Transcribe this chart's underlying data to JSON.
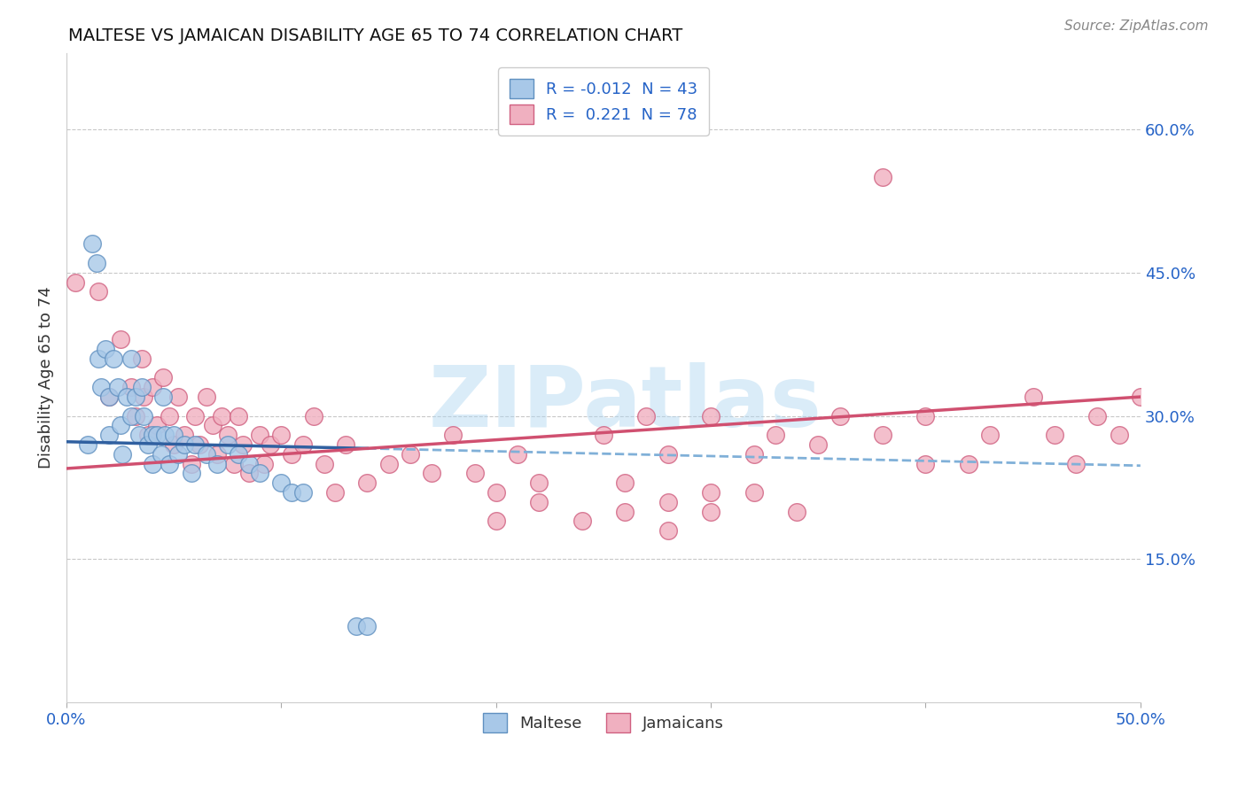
{
  "title": "MALTESE VS JAMAICAN DISABILITY AGE 65 TO 74 CORRELATION CHART",
  "source": "Source: ZipAtlas.com",
  "ylabel": "Disability Age 65 to 74",
  "xlim": [
    0.0,
    0.5
  ],
  "ylim": [
    0.0,
    0.68
  ],
  "ytick_labels_right": [
    "15.0%",
    "30.0%",
    "45.0%",
    "60.0%"
  ],
  "ytick_vals_right": [
    0.15,
    0.3,
    0.45,
    0.6
  ],
  "grid_color": "#c8c8c8",
  "background_color": "#ffffff",
  "watermark": "ZIPatlas",
  "watermark_color": "#aed6f1",
  "legend_blue_label": "R = -0.012  N = 43",
  "legend_pink_label": "R =  0.221  N = 78",
  "legend_label_maltese": "Maltese",
  "legend_label_jamaicans": "Jamaicans",
  "blue_color": "#a8c8e8",
  "pink_color": "#f0b0c0",
  "blue_edge": "#6090c0",
  "pink_edge": "#d06080",
  "trend_blue_solid_color": "#3060a0",
  "trend_blue_dash_color": "#80b0d8",
  "trend_pink_color": "#d05070",
  "blue_x": [
    0.01,
    0.012,
    0.014,
    0.015,
    0.016,
    0.018,
    0.02,
    0.02,
    0.022,
    0.024,
    0.025,
    0.026,
    0.028,
    0.03,
    0.03,
    0.032,
    0.034,
    0.035,
    0.036,
    0.038,
    0.04,
    0.04,
    0.042,
    0.044,
    0.045,
    0.046,
    0.048,
    0.05,
    0.052,
    0.055,
    0.058,
    0.06,
    0.065,
    0.07,
    0.075,
    0.08,
    0.085,
    0.09,
    0.1,
    0.105,
    0.11,
    0.135,
    0.14
  ],
  "blue_y": [
    0.27,
    0.48,
    0.46,
    0.36,
    0.33,
    0.37,
    0.32,
    0.28,
    0.36,
    0.33,
    0.29,
    0.26,
    0.32,
    0.36,
    0.3,
    0.32,
    0.28,
    0.33,
    0.3,
    0.27,
    0.28,
    0.25,
    0.28,
    0.26,
    0.32,
    0.28,
    0.25,
    0.28,
    0.26,
    0.27,
    0.24,
    0.27,
    0.26,
    0.25,
    0.27,
    0.26,
    0.25,
    0.24,
    0.23,
    0.22,
    0.22,
    0.08,
    0.08
  ],
  "pink_x": [
    0.004,
    0.015,
    0.02,
    0.025,
    0.03,
    0.032,
    0.035,
    0.036,
    0.038,
    0.04,
    0.042,
    0.045,
    0.048,
    0.05,
    0.052,
    0.055,
    0.058,
    0.06,
    0.062,
    0.065,
    0.068,
    0.07,
    0.072,
    0.075,
    0.078,
    0.08,
    0.082,
    0.085,
    0.09,
    0.092,
    0.095,
    0.1,
    0.105,
    0.11,
    0.115,
    0.12,
    0.125,
    0.13,
    0.14,
    0.15,
    0.16,
    0.17,
    0.18,
    0.19,
    0.2,
    0.21,
    0.22,
    0.25,
    0.27,
    0.28,
    0.3,
    0.32,
    0.33,
    0.35,
    0.36,
    0.38,
    0.4,
    0.42,
    0.43,
    0.45,
    0.46,
    0.47,
    0.48,
    0.49,
    0.5,
    0.38,
    0.4,
    0.26,
    0.28,
    0.3,
    0.2,
    0.22,
    0.24,
    0.26,
    0.28,
    0.3,
    0.32,
    0.34
  ],
  "pink_y": [
    0.44,
    0.43,
    0.32,
    0.38,
    0.33,
    0.3,
    0.36,
    0.32,
    0.28,
    0.33,
    0.29,
    0.34,
    0.3,
    0.27,
    0.32,
    0.28,
    0.25,
    0.3,
    0.27,
    0.32,
    0.29,
    0.26,
    0.3,
    0.28,
    0.25,
    0.3,
    0.27,
    0.24,
    0.28,
    0.25,
    0.27,
    0.28,
    0.26,
    0.27,
    0.3,
    0.25,
    0.22,
    0.27,
    0.23,
    0.25,
    0.26,
    0.24,
    0.28,
    0.24,
    0.22,
    0.26,
    0.23,
    0.28,
    0.3,
    0.26,
    0.3,
    0.26,
    0.28,
    0.27,
    0.3,
    0.28,
    0.3,
    0.25,
    0.28,
    0.32,
    0.28,
    0.25,
    0.3,
    0.28,
    0.32,
    0.55,
    0.25,
    0.2,
    0.18,
    0.22,
    0.19,
    0.21,
    0.19,
    0.23,
    0.21,
    0.2,
    0.22,
    0.2
  ],
  "blue_trend_x0": 0.0,
  "blue_trend_x_solid_end": 0.14,
  "blue_trend_x_dash_end": 0.5,
  "blue_trend_y_at_0": 0.273,
  "blue_trend_slope": -0.05,
  "pink_trend_x0": 0.0,
  "pink_trend_x1": 0.5,
  "pink_trend_y_at_0": 0.245,
  "pink_trend_y_at_1": 0.32
}
